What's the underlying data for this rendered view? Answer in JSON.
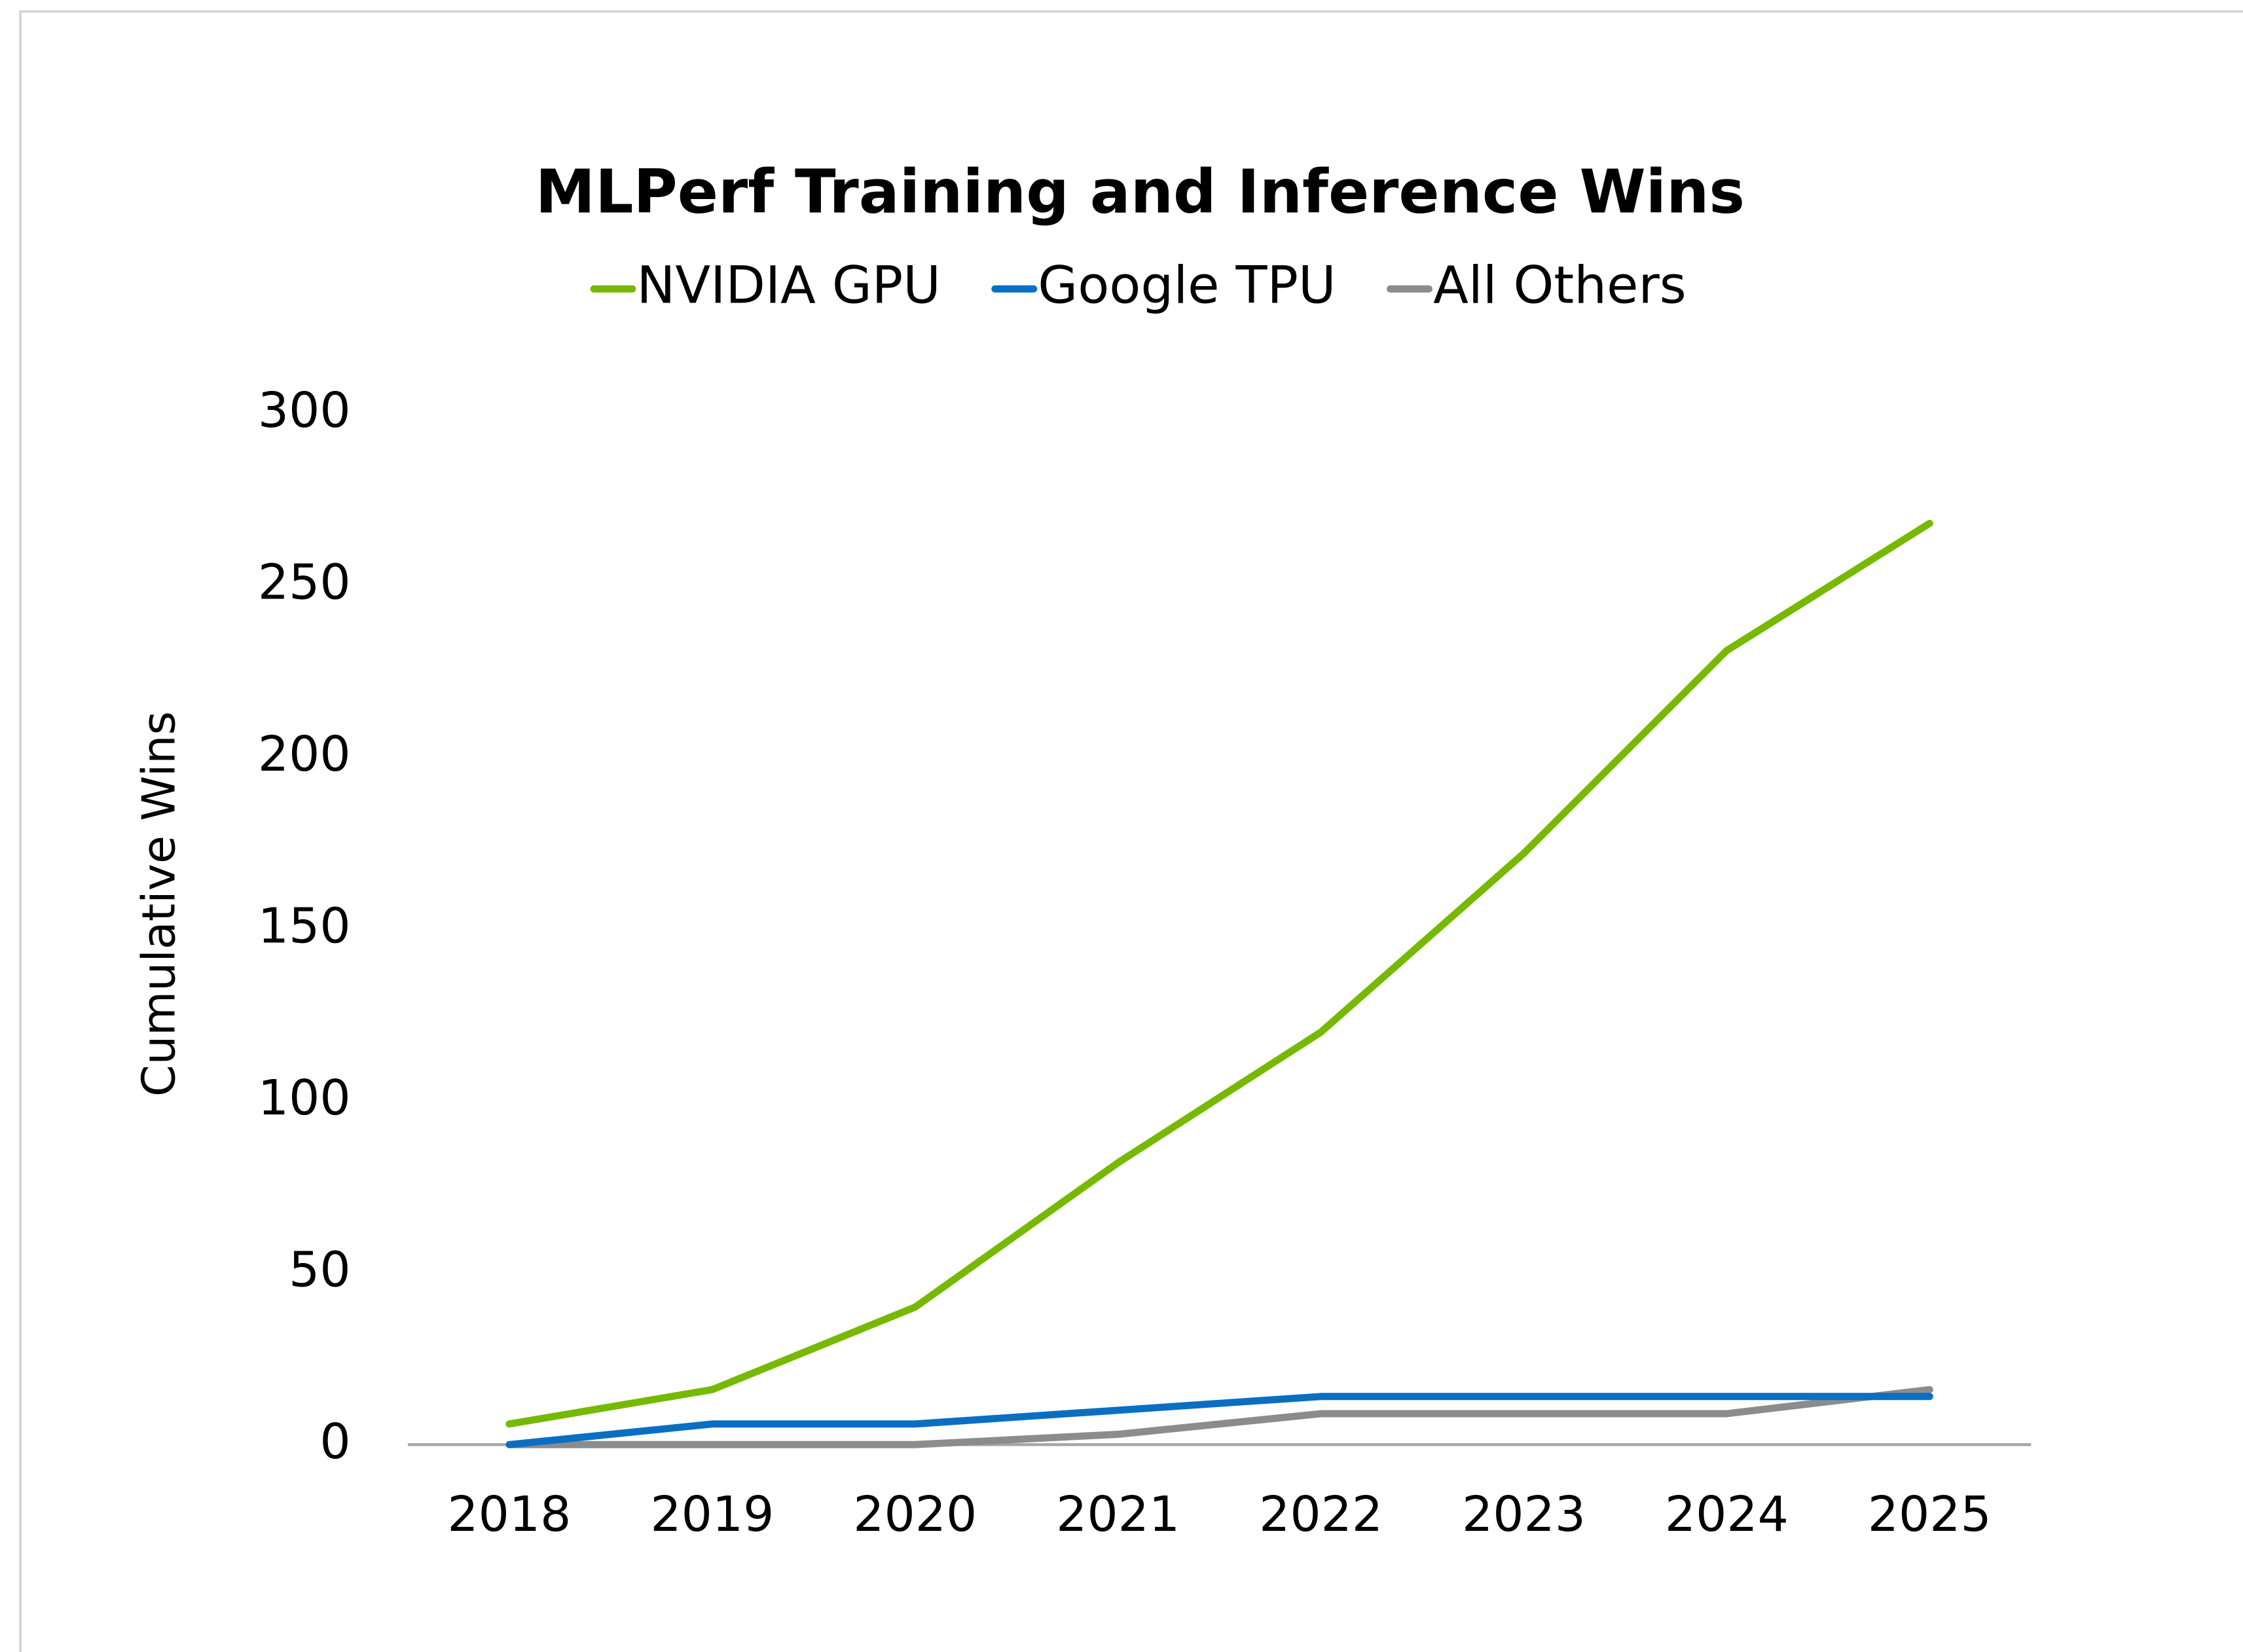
{
  "chart_data": {
    "type": "line",
    "title": "MLPerf Training and Inference Wins",
    "y_label": "Cumulative Wins",
    "categories": [
      "2018",
      "2019",
      "2020",
      "2021",
      "2022",
      "2023",
      "2024",
      "2025"
    ],
    "series": [
      {
        "name": "NVIDIA GPU",
        "color": "#76b900",
        "values": [
          6,
          16,
          40,
          82,
          120,
          172,
          231,
          268
        ]
      },
      {
        "name": "Google TPU",
        "color": "#0a6fc2",
        "values": [
          0,
          6,
          6,
          10,
          14,
          14,
          14,
          14
        ]
      },
      {
        "name": "All Others",
        "color": "#8c8c8c",
        "values": [
          0,
          0,
          0,
          3,
          9,
          9,
          9,
          16
        ]
      }
    ],
    "ylim": [
      0,
      300
    ],
    "yticks": [
      0,
      50,
      100,
      150,
      200,
      250,
      300
    ],
    "grid": false,
    "legend": "top"
  }
}
